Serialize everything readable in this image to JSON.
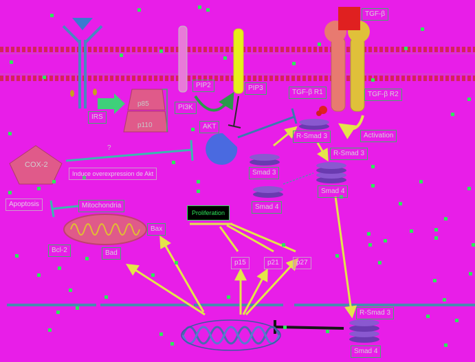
{
  "labels": {
    "tgf_b": "TGF-β",
    "pip2": "PIP2",
    "pip3": "PIP3",
    "tgf_b_r1": "TGF-β R1",
    "tgf_b_r2": "TGF-β R2",
    "p85": "p85",
    "p110": "p110",
    "pi3k": "PI3K",
    "irs": "IRS",
    "akt": "AKT",
    "r_smad3_top": "R-Smad 3",
    "activation": "Activation",
    "r_smad3_mid": "R-Smad 3",
    "question": "?",
    "cox2": "COX-2",
    "induce_akt": "Induce overexpression de Akt",
    "smad3": "Smad 3",
    "smad4_complex": "Smad 4",
    "smad4": "Smad 4",
    "apoptosis": "Apoptosis",
    "mitochondria": "Mitochondria",
    "proliferation": "Proliferation",
    "bax": "Bax",
    "bcl2": "Bcl-2",
    "bad": "Bad",
    "p15": "p15",
    "p21": "p21",
    "p27": "p27",
    "r_smad3_nuc": "R-Smad 3",
    "smad4_nuc": "Smad 4"
  }
}
